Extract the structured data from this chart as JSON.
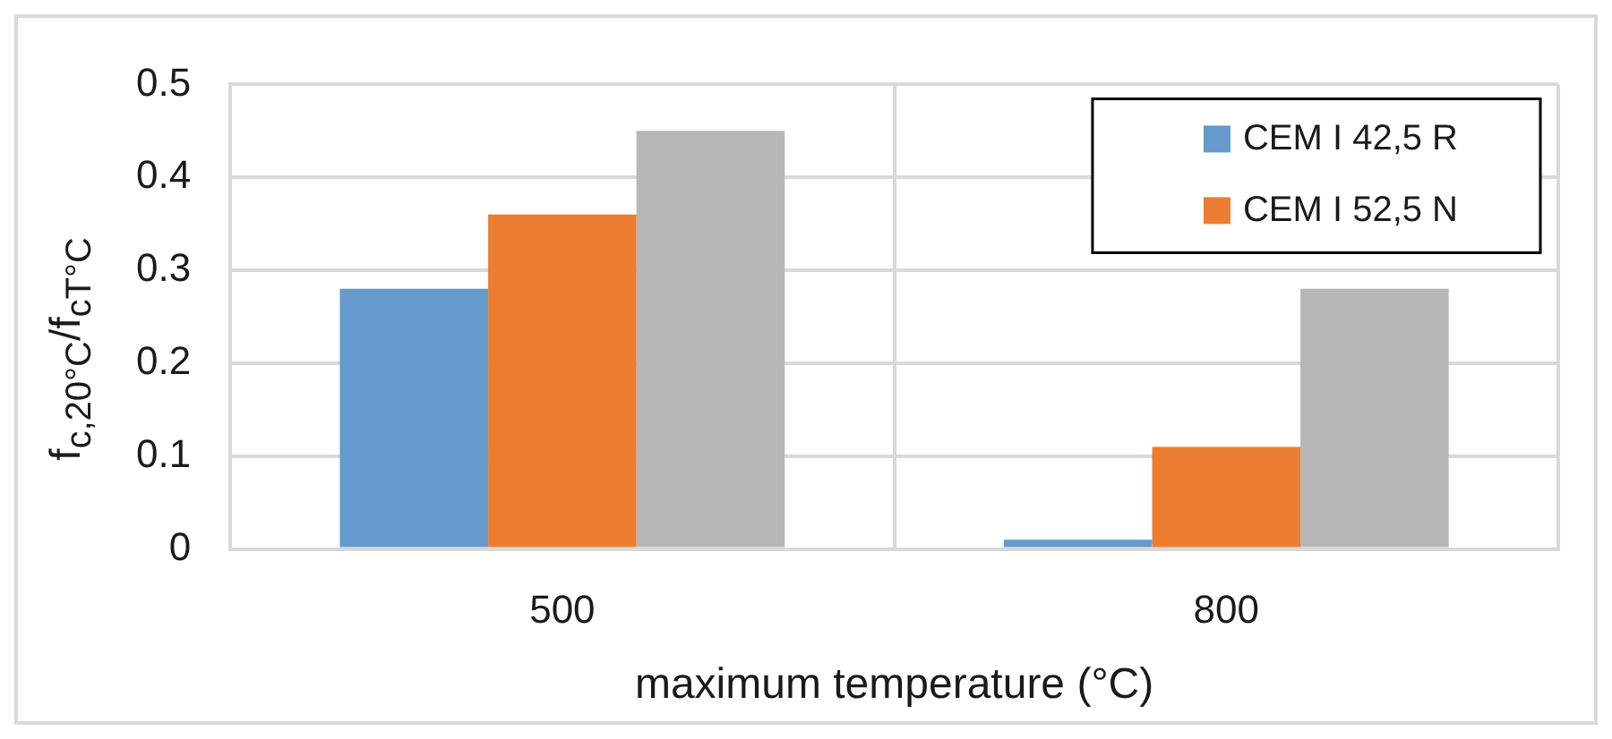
{
  "chart_data": {
    "type": "bar",
    "xlabel": "maximum temperature (°C)",
    "ylabel": "f$_{c,20°C}$/f$_{cT°C}$",
    "categories": [
      "500",
      "800"
    ],
    "series": [
      {
        "name": "CEM I 42,5 R",
        "color": "#6699cc",
        "values": [
          0.28,
          0.01
        ]
      },
      {
        "name": "CEM I 52,5 N",
        "color": "#ed7d31",
        "values": [
          0.36,
          0.11
        ]
      },
      {
        "color": "#b7b7b7",
        "values": [
          0.45,
          0.28
        ]
      }
    ],
    "ylim": [
      0,
      0.5
    ],
    "yticks": [
      0,
      0.1,
      0.2,
      0.3,
      0.4,
      0.5
    ],
    "grid": true,
    "legend": "top right"
  }
}
